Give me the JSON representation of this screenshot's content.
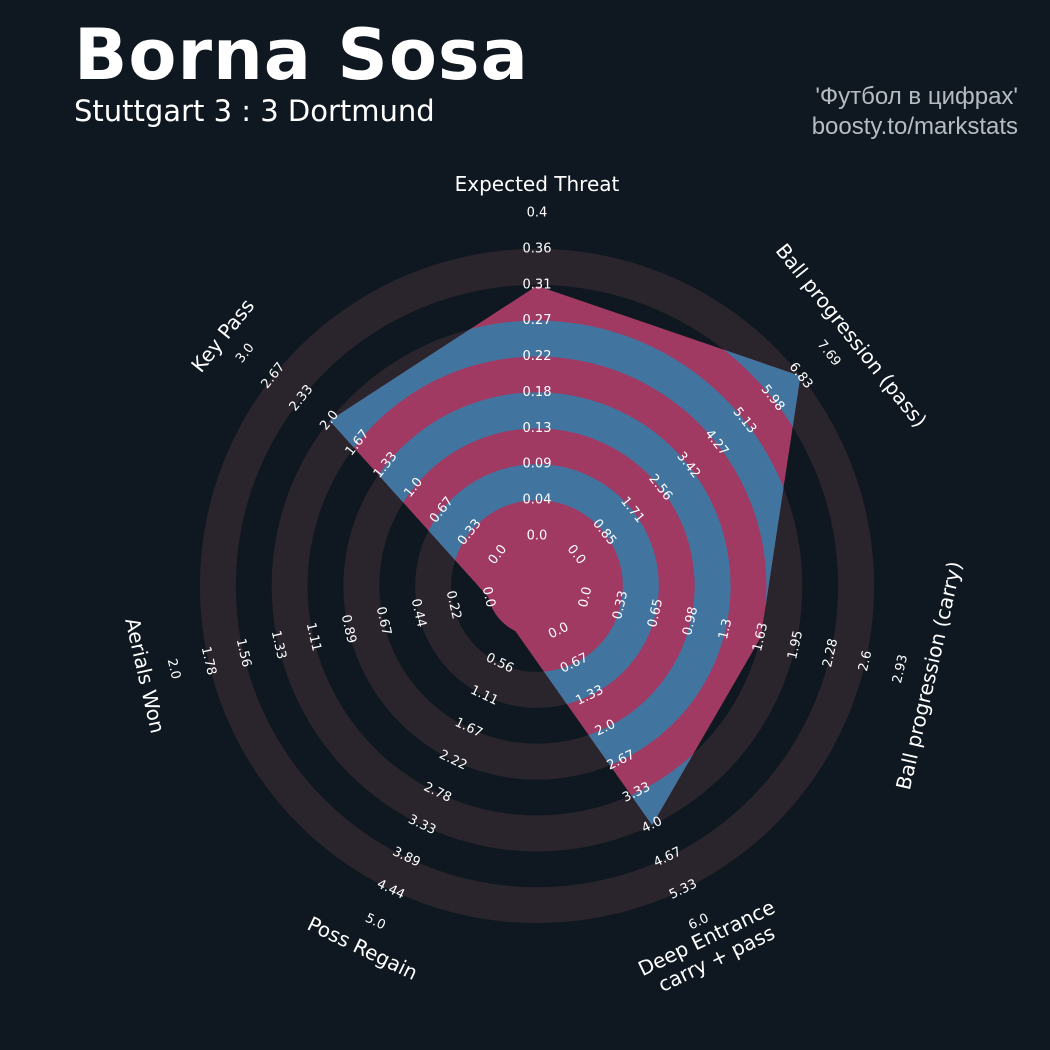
{
  "header": {
    "title": "Borna Sosa",
    "subtitle": "Stuttgart 3 : 3 Dortmund",
    "credit_line1": "'Футбол в цифрах'",
    "credit_line2": "boosty.to/markstats"
  },
  "colors": {
    "background": "#0f1820",
    "ring_band": "#2a252c",
    "player_fill": "#a03a63",
    "player_band": "#4274a0",
    "text": "#ffffff"
  },
  "chart_data": {
    "type": "radar",
    "title": "Borna Sosa",
    "params": [
      {
        "name": "Expected Threat",
        "value": 0.31,
        "ticks": [
          "0.0",
          "0.04",
          "0.09",
          "0.13",
          "0.18",
          "0.22",
          "0.27",
          "0.31",
          "0.36",
          "0.4"
        ]
      },
      {
        "name": "Ball progression (pass)",
        "value": 6.83,
        "ticks": [
          "0.0",
          "0.85",
          "1.71",
          "2.56",
          "3.42",
          "4.27",
          "5.13",
          "5.98",
          "6.83",
          "7.69"
        ]
      },
      {
        "name": "Ball progression (carry)",
        "value": 1.63,
        "ticks": [
          "0.0",
          "0.33",
          "0.65",
          "0.98",
          "1.3",
          "1.63",
          "1.95",
          "2.28",
          "2.6",
          "2.93"
        ]
      },
      {
        "name": "Deep Entrance\ncarry + pass",
        "value": 4.0,
        "ticks": [
          "0.0",
          "0.67",
          "1.33",
          "2.0",
          "2.67",
          "3.33",
          "4.0",
          "4.67",
          "5.33",
          "6.0"
        ]
      },
      {
        "name": "Poss Regain",
        "value": 0.0,
        "ticks": [
          "0.56",
          "1.11",
          "1.67",
          "2.22",
          "2.78",
          "3.33",
          "3.89",
          "4.44",
          "5.0"
        ]
      },
      {
        "name": "Aerials Won",
        "value": 0.0,
        "ticks": [
          "0.0",
          "0.22",
          "0.44",
          "0.67",
          "0.89",
          "1.11",
          "1.33",
          "1.56",
          "1.78",
          "2.0"
        ]
      },
      {
        "name": "Key Pass",
        "value": 2.0,
        "ticks": [
          "0.0",
          "0.33",
          "0.67",
          "1.0",
          "1.33",
          "1.67",
          "2.0",
          "2.33",
          "2.67",
          "3.0"
        ]
      }
    ]
  }
}
